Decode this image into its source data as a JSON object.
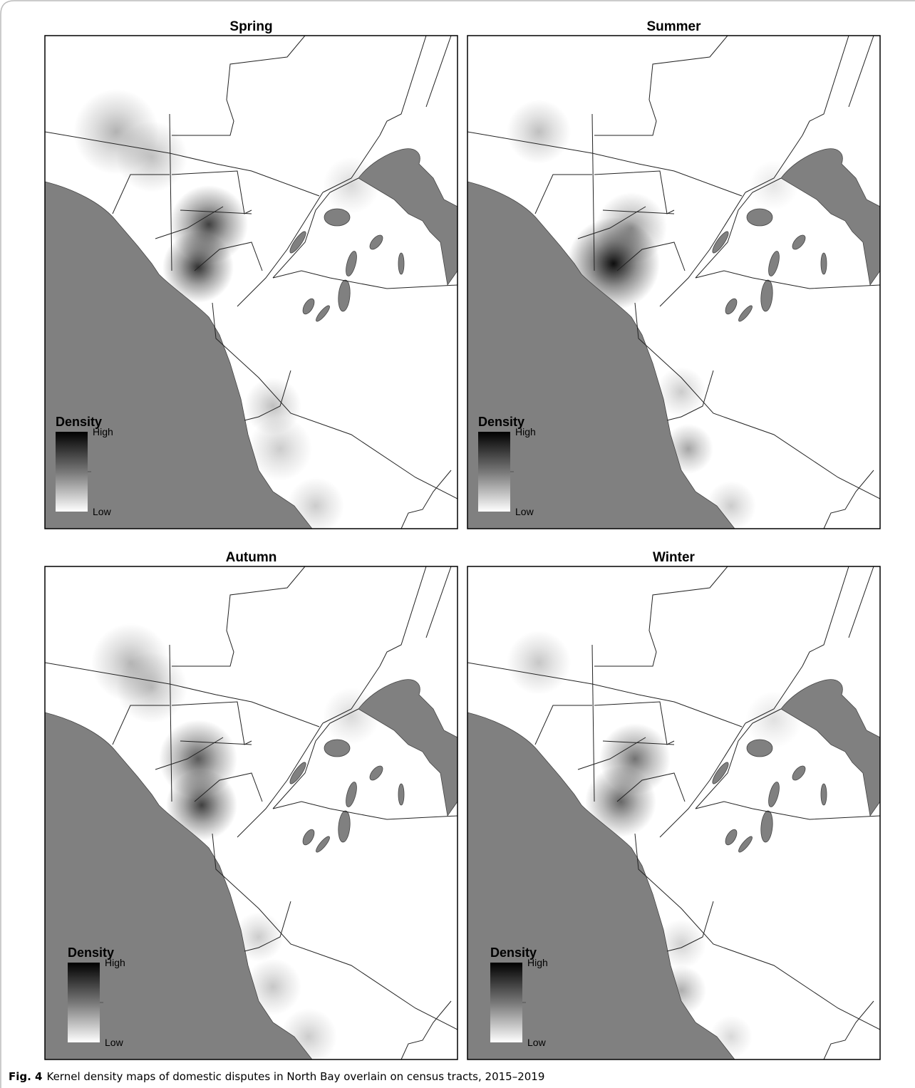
{
  "figure": {
    "panels": [
      {
        "title": "Spring",
        "legend": {
          "title": "Density",
          "high": "High",
          "low": "Low"
        }
      },
      {
        "title": "Summer",
        "legend": {
          "title": "Density",
          "high": "High",
          "low": "Low"
        }
      },
      {
        "title": "Autumn",
        "legend": {
          "title": "Density",
          "high": "High",
          "low": "Low"
        }
      },
      {
        "title": "Winter",
        "legend": {
          "title": "Density",
          "high": "High",
          "low": "Low"
        }
      }
    ],
    "caption": {
      "label": "Fig. 4",
      "text": "Kernel density maps of domestic disputes in North Bay overlain on census tracts, 2015–2019"
    }
  }
}
